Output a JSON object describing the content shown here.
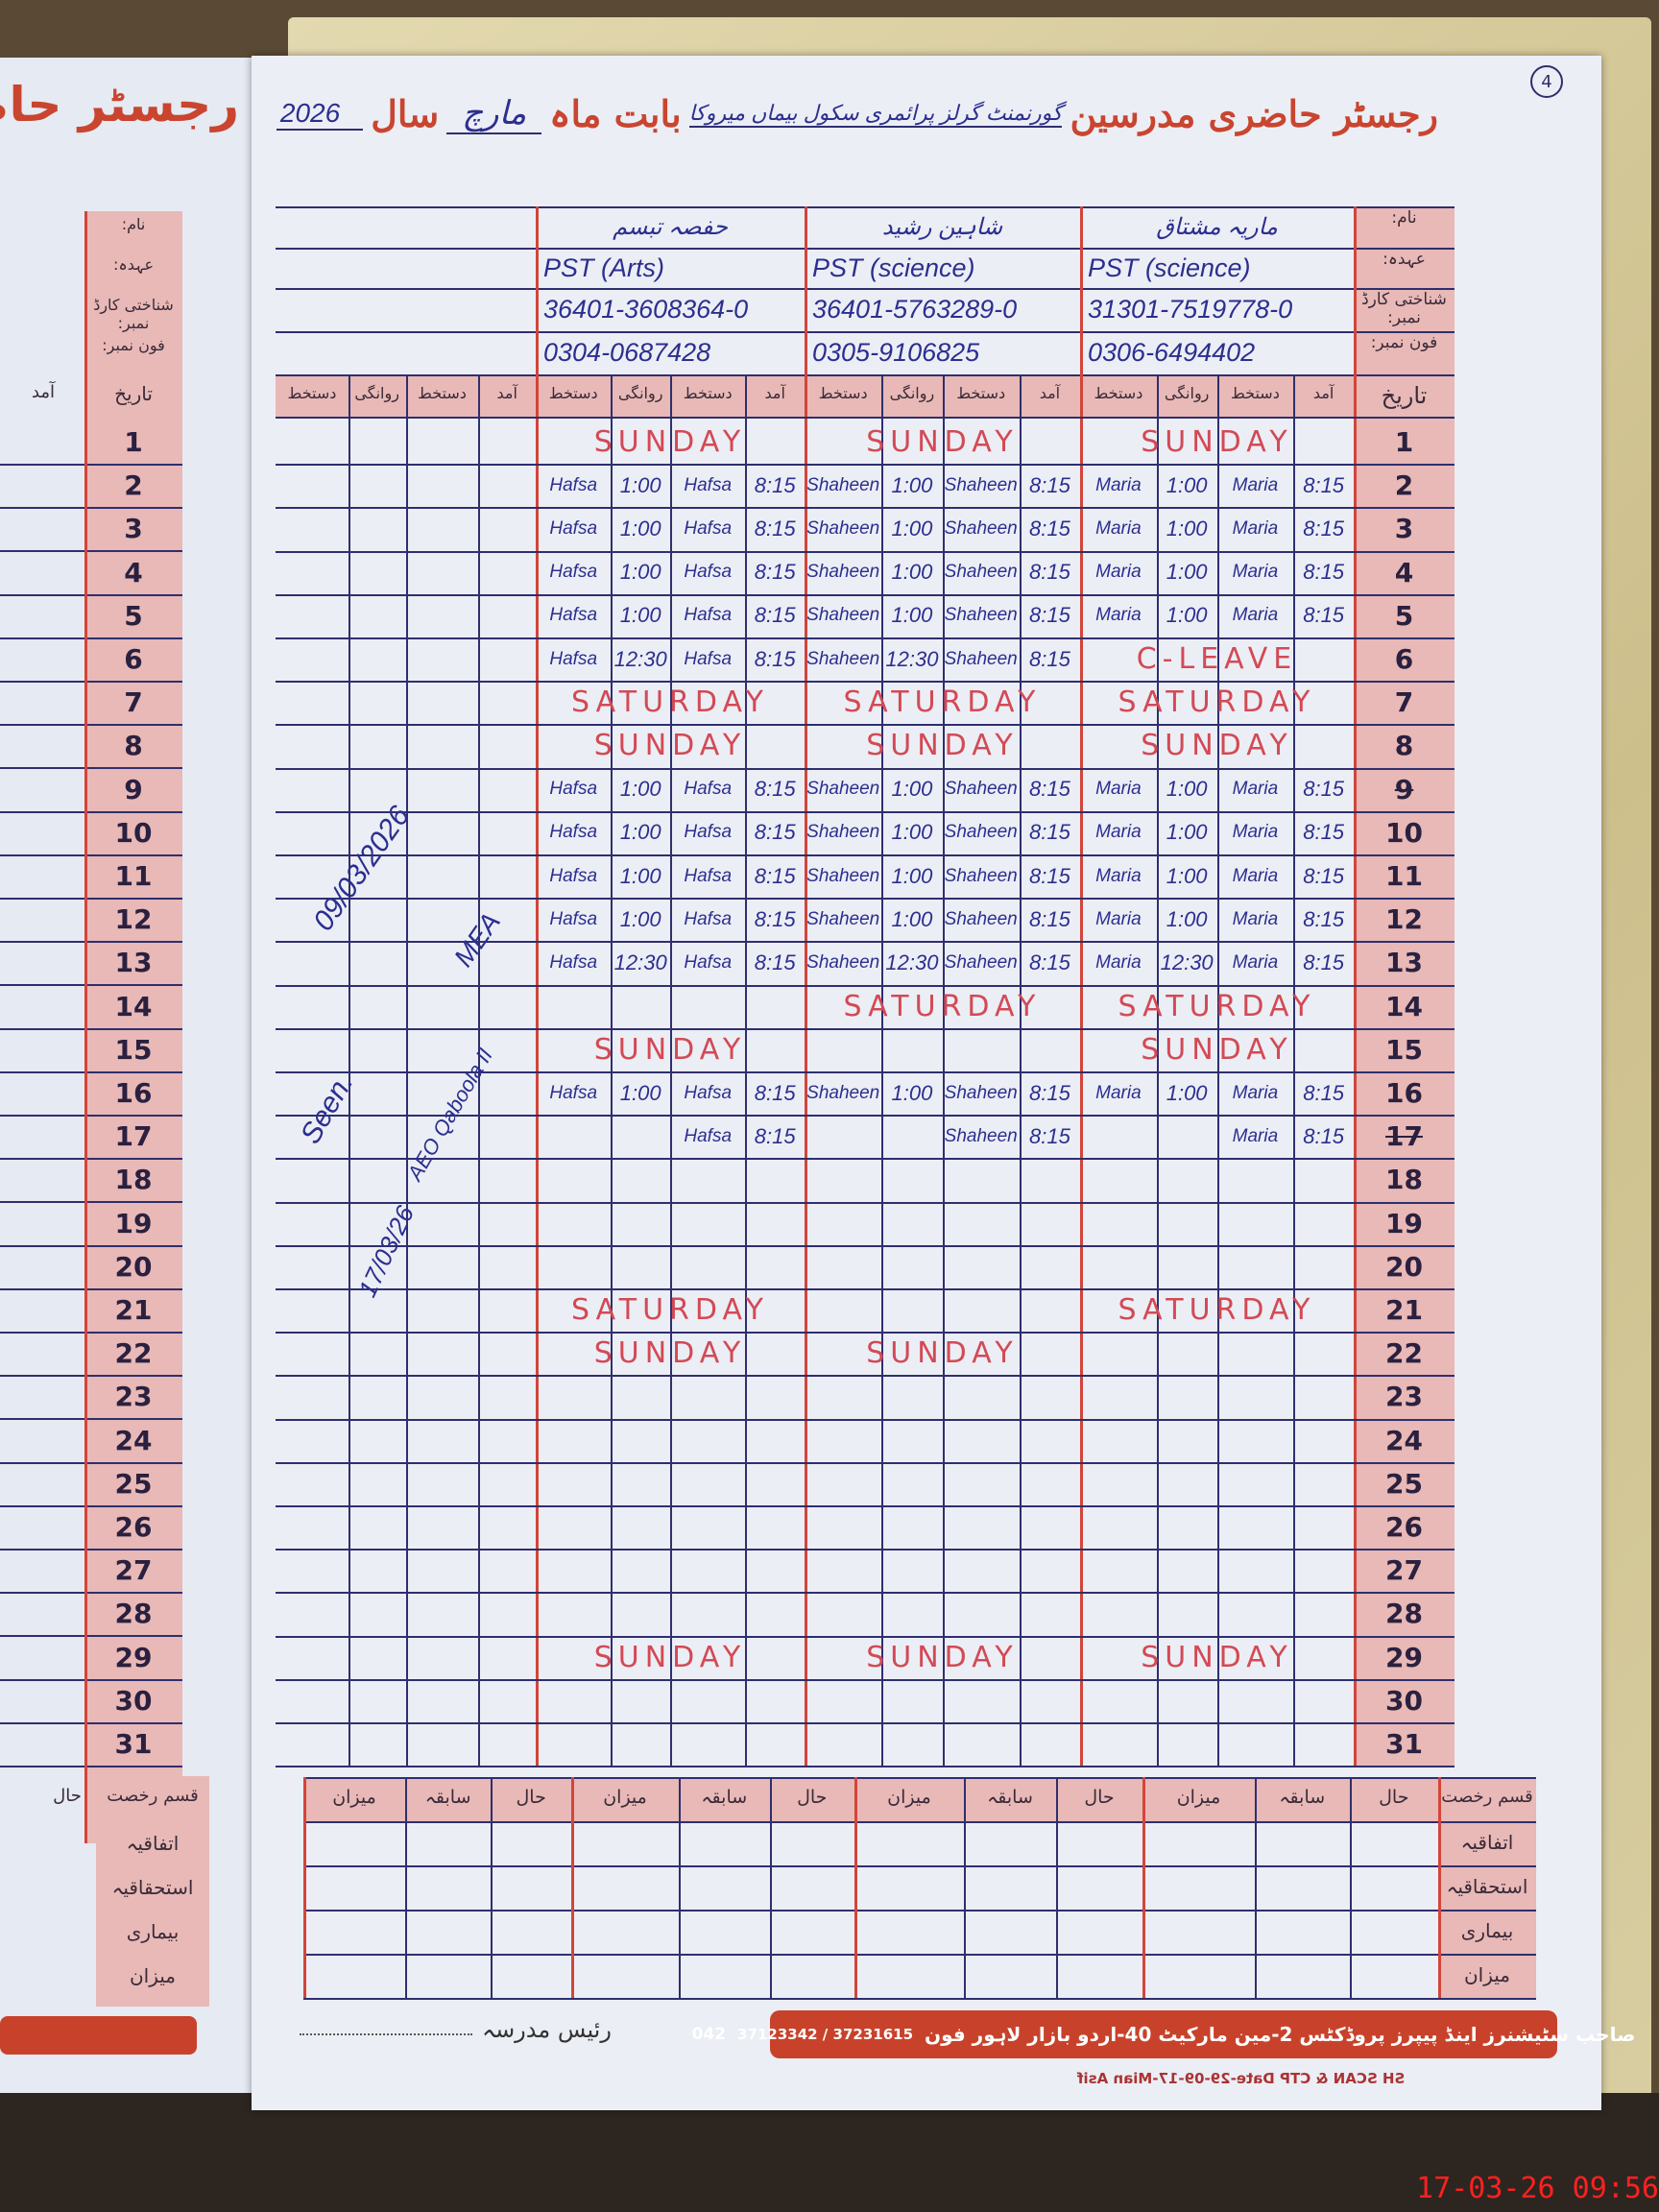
{
  "page_number": "4",
  "header": {
    "title": "رجسٹر حاضری مدرسین",
    "school": "گورنمنٹ گرلز پرائمری سکول بیماں میروکا",
    "month_label": "بابت ماہ",
    "month": "مارچ",
    "year_label": "سال",
    "year": "2026"
  },
  "info_labels": [
    "نام:",
    "عہدہ:",
    "شناختی کارڈ نمبر:",
    "فون نمبر:"
  ],
  "date_label": "تاریخ",
  "sub_headers": {
    "in": "آمد",
    "sign": "دستخط",
    "out": "روانگی"
  },
  "teachers": [
    {
      "name": "ماریہ مشتاق",
      "designation": "PST (science)",
      "cnic": "31301-7519778-0",
      "phone": "0306-6494402",
      "signature": "Maria"
    },
    {
      "name": "شاہین رشید",
      "designation": "PST (science)",
      "cnic": "36401-5763289-0",
      "phone": "0305-9106825",
      "signature": "Shaheen"
    },
    {
      "name": "حفصہ تبسم",
      "designation": "PST (Arts)",
      "cnic": "36401-3608364-0",
      "phone": "0304-0687428",
      "signature": "Hafsa"
    }
  ],
  "days": [
    {
      "day": "1",
      "marks": [
        "SUNDAY",
        "SUNDAY",
        "SUNDAY"
      ]
    },
    {
      "day": "2",
      "marks": [
        {
          "in": "8:15",
          "out": "1:00"
        },
        {
          "in": "8:15",
          "out": "1:00"
        },
        {
          "in": "8:15",
          "out": "1:00"
        }
      ]
    },
    {
      "day": "3",
      "marks": [
        {
          "in": "8:15",
          "out": "1:00"
        },
        {
          "in": "8:15",
          "out": "1:00"
        },
        {
          "in": "8:15",
          "out": "1:00"
        }
      ]
    },
    {
      "day": "4",
      "marks": [
        {
          "in": "8:15",
          "out": "1:00"
        },
        {
          "in": "8:15",
          "out": "1:00"
        },
        {
          "in": "8:15",
          "out": "1:00"
        }
      ]
    },
    {
      "day": "5",
      "marks": [
        {
          "in": "8:15",
          "out": "1:00"
        },
        {
          "in": "8:15",
          "out": "1:00"
        },
        {
          "in": "8:15",
          "out": "1:00"
        }
      ]
    },
    {
      "day": "6",
      "marks": [
        "C-LEAVE",
        {
          "in": "8:15",
          "out": "12:30"
        },
        {
          "in": "8:15",
          "out": "12:30"
        }
      ]
    },
    {
      "day": "7",
      "marks": [
        "SATURDAY",
        "SATURDAY",
        "SATURDAY"
      ]
    },
    {
      "day": "8",
      "marks": [
        "SUNDAY",
        "SUNDAY",
        "SUNDAY"
      ]
    },
    {
      "day": "9",
      "struck": true,
      "marks": [
        {
          "in": "8:15",
          "out": "1:00"
        },
        {
          "in": "8:15",
          "out": "1:00"
        },
        {
          "in": "8:15",
          "out": "1:00"
        }
      ]
    },
    {
      "day": "10",
      "marks": [
        {
          "in": "8:15",
          "out": "1:00"
        },
        {
          "in": "8:15",
          "out": "1:00"
        },
        {
          "in": "8:15",
          "out": "1:00"
        }
      ]
    },
    {
      "day": "11",
      "marks": [
        {
          "in": "8:15",
          "out": "1:00"
        },
        {
          "in": "8:15",
          "out": "1:00"
        },
        {
          "in": "8:15",
          "out": "1:00"
        }
      ]
    },
    {
      "day": "12",
      "marks": [
        {
          "in": "8:15",
          "out": "1:00"
        },
        {
          "in": "8:15",
          "out": "1:00"
        },
        {
          "in": "8:15",
          "out": "1:00"
        }
      ]
    },
    {
      "day": "13",
      "marks": [
        {
          "in": "8:15",
          "out": "12:30"
        },
        {
          "in": "8:15",
          "out": "12:30"
        },
        {
          "in": "8:15",
          "out": "12:30"
        }
      ]
    },
    {
      "day": "14",
      "marks": [
        "SATURDAY",
        "SATURDAY",
        null
      ]
    },
    {
      "day": "15",
      "marks": [
        "SUNDAY",
        null,
        "SUNDAY"
      ]
    },
    {
      "day": "16",
      "marks": [
        {
          "in": "8:15",
          "out": "1:00"
        },
        {
          "in": "8:15",
          "out": "1:00"
        },
        {
          "in": "8:15",
          "out": "1:00"
        }
      ]
    },
    {
      "day": "17",
      "struck": true,
      "marks": [
        {
          "in": "8:15"
        },
        {
          "in": "8:15"
        },
        {
          "in": "8:15"
        }
      ]
    },
    {
      "day": "18",
      "marks": [
        null,
        null,
        null
      ]
    },
    {
      "day": "19",
      "marks": [
        null,
        null,
        null
      ]
    },
    {
      "day": "20",
      "marks": [
        null,
        null,
        null
      ]
    },
    {
      "day": "21",
      "marks": [
        "SATURDAY",
        null,
        "SATURDAY"
      ]
    },
    {
      "day": "22",
      "marks": [
        null,
        "SUNDAY",
        "SUNDAY"
      ]
    },
    {
      "day": "23",
      "marks": [
        null,
        null,
        null
      ]
    },
    {
      "day": "24",
      "marks": [
        null,
        null,
        null
      ]
    },
    {
      "day": "25",
      "marks": [
        null,
        null,
        null
      ]
    },
    {
      "day": "26",
      "marks": [
        null,
        null,
        null
      ]
    },
    {
      "day": "27",
      "marks": [
        null,
        null,
        null
      ]
    },
    {
      "day": "28",
      "marks": [
        null,
        null,
        null
      ]
    },
    {
      "day": "29",
      "marks": [
        "SUNDAY",
        "SUNDAY",
        "SUNDAY"
      ]
    },
    {
      "day": "30",
      "marks": [
        null,
        null,
        null
      ]
    },
    {
      "day": "31",
      "marks": [
        null,
        null,
        null
      ]
    }
  ],
  "inspection_notes": {
    "note1_date": "09/03/2026",
    "note1_title": "MEA",
    "note2_seen": "Seen.",
    "note2_title": "AEO Qaboola II",
    "note2_date": "17/03/26"
  },
  "summary": {
    "leave_type_label": "قسم رخصت",
    "columns": [
      "حال",
      "سابقہ",
      "میزان"
    ],
    "rows": [
      "اتفاقیہ",
      "استحقاقیہ",
      "بیماری",
      "میزان"
    ]
  },
  "footer": {
    "head_teacher_label": "رئیس مدرسہ",
    "publisher": "صاحب سٹیشنرز اینڈ پیپرز پروڈکٹس 2-مین مارکیٹ 40-اردو بازار لاہور فون",
    "phone_code": "042",
    "phones": "37123342 / 37231615",
    "printer_line": "SH SCAN & CTP Date-29-09-17-Mian Asif"
  },
  "left_page": {
    "title_fragment": "رجسٹر حاض",
    "arrival_label": "آمد",
    "status_label": "حال"
  },
  "timestamp": "17-03-26 09:56",
  "colors": {
    "ink_blue": "#2b2f8f",
    "ink_red": "#d24a55",
    "print_red": "#c9452f",
    "header_pink": "#e8b9b6"
  }
}
